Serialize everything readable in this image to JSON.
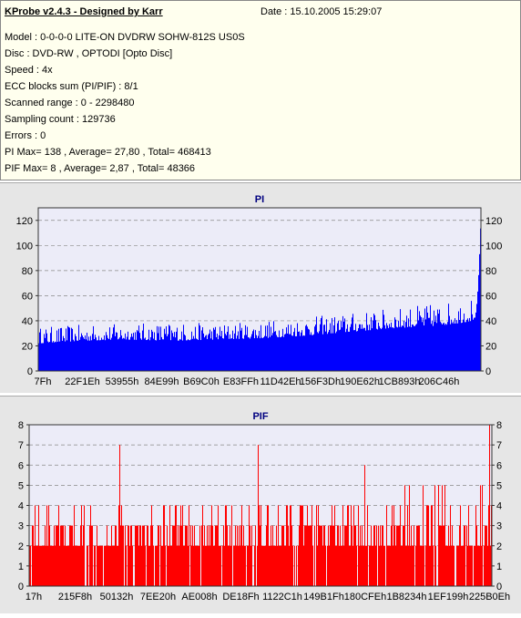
{
  "header": {
    "title": "KProbe v2.4.3 - Designed by Karr",
    "date": "Date : 15.10.2005 15:29:07",
    "lines": [
      "Model : 0-0-0-0 LITE-ON DVDRW SOHW-812S  US0S",
      "Disc : DVD-RW , OPTODI [Opto Disc]",
      "Speed : 4x",
      "ECC blocks sum (PI/PIF) : 8/1",
      "Scanned range : 0 - 2298480",
      "Sampling count : 129736",
      "Errors : 0",
      "PI Max= 138 , Average= 27,80 , Total= 468413",
      "PIF Max= 8 , Average= 2,87 , Total= 48366"
    ]
  },
  "chart_data": [
    {
      "type": "bar",
      "title": "PI",
      "ylim": [
        0,
        130
      ],
      "yticks": [
        0,
        20,
        40,
        60,
        80,
        100,
        120
      ],
      "grid": true,
      "color": "#0000ff",
      "xtick_labels": [
        "7Fh",
        "22F1Eh",
        "53955h",
        "84E99h",
        "B69C0h",
        "E83FFh",
        "11D42Eh",
        "156F3Dh",
        "190E62h",
        "1CB893h",
        "206C46h"
      ],
      "profile": {
        "x_fraction": [
          0,
          0.1,
          0.2,
          0.3,
          0.4,
          0.5,
          0.6,
          0.7,
          0.8,
          0.9,
          0.95,
          0.98,
          1.0
        ],
        "base": [
          22,
          24,
          25,
          24,
          25,
          26,
          28,
          31,
          34,
          36,
          38,
          40,
          48
        ],
        "peak": [
          35,
          37,
          38,
          39,
          38,
          40,
          43,
          46,
          50,
          54,
          56,
          60,
          138
        ]
      }
    },
    {
      "type": "bar",
      "title": "PIF",
      "ylim": [
        0,
        8
      ],
      "yticks": [
        0,
        1,
        2,
        3,
        4,
        5,
        6,
        7,
        8
      ],
      "grid": true,
      "color": "#ff0000",
      "xtick_labels": [
        "17h",
        "215F8h",
        "50132h",
        "7EE20h",
        "AE008h",
        "DE18Fh",
        "1122C1h",
        "149B1Fh",
        "180CFEh",
        "1B8234h",
        "1EF199h",
        "225B0Eh"
      ],
      "profile": {
        "x_fraction": [
          0,
          0.5,
          1.0
        ],
        "base": [
          2,
          2,
          2
        ],
        "peak": [
          4,
          4,
          5
        ]
      },
      "spikes": [
        {
          "x_fraction": 0.195,
          "value": 7
        },
        {
          "x_fraction": 0.495,
          "value": 7
        },
        {
          "x_fraction": 0.725,
          "value": 6
        },
        {
          "x_fraction": 0.995,
          "value": 8
        }
      ]
    }
  ]
}
